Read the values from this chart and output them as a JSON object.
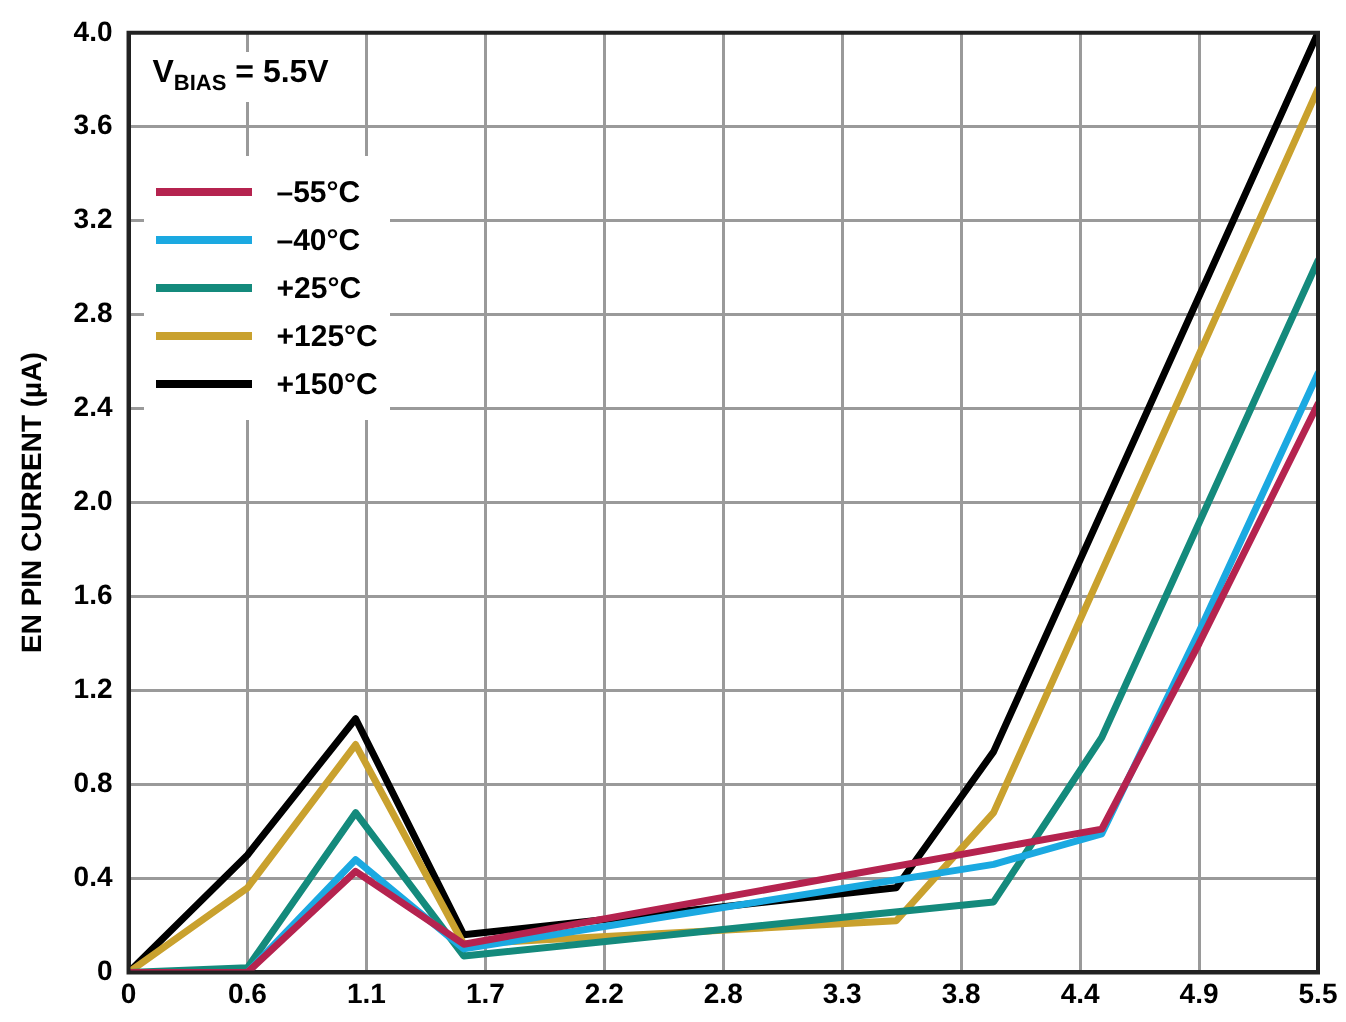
{
  "chart_data": {
    "type": "line",
    "ylabel": "EN PIN CURRENT (µA)",
    "annotations": [
      "V$_{BIAS}$ = 5.5V"
    ],
    "xlim": [
      0,
      5.5
    ],
    "xticks": [
      0,
      {
        "value": 0.55,
        "label": "0.6"
      },
      1.1,
      {
        "value": 1.65,
        "label": "1.7"
      },
      2.2,
      {
        "value": 2.75,
        "label": "2.8"
      },
      3.3,
      {
        "value": 3.85,
        "label": "3.8"
      },
      4.4,
      {
        "value": 4.95,
        "label": "4.9"
      },
      5.5
    ],
    "ylim": [
      0,
      4
    ],
    "yticks": [
      0,
      0.4,
      0.8,
      1.2,
      1.6,
      {
        "value": 2,
        "label": "2.0"
      },
      2.4,
      2.8,
      3.2,
      3.6,
      {
        "value": 4,
        "label": "4.0"
      }
    ],
    "grid": true,
    "legend": "top left",
    "marker": "none",
    "line_style": "solid",
    "series": [
      {
        "name": "–55°C",
        "color": "#b5234f",
        "x": [
          0,
          0.55,
          1.05,
          1.55,
          4.5,
          4.95,
          5.5
        ],
        "values": [
          0,
          0,
          0.43,
          0.12,
          0.61,
          1.4,
          2.42
        ]
      },
      {
        "name": "–40°C",
        "color": "#1ba9e1",
        "x": [
          0,
          0.55,
          1.05,
          1.55,
          4.0,
          4.5,
          4.95,
          5.5
        ],
        "values": [
          0,
          0,
          0.48,
          0.1,
          0.46,
          0.59,
          1.45,
          2.55
        ]
      },
      {
        "name": "+25°C",
        "color": "#148a7c",
        "x": [
          0,
          0.55,
          1.05,
          1.55,
          4.0,
          4.5,
          5.5
        ],
        "values": [
          0,
          0.02,
          0.68,
          0.07,
          0.3,
          1.0,
          3.03
        ]
      },
      {
        "name": "+125°C",
        "color": "#c9a12e",
        "x": [
          0,
          0.55,
          1.05,
          1.55,
          3.55,
          4.0,
          5.5
        ],
        "values": [
          0,
          0.36,
          0.97,
          0.12,
          0.22,
          0.68,
          3.76
        ]
      },
      {
        "name": "+150°C",
        "color": "#000000",
        "x": [
          0,
          0.55,
          1.05,
          1.55,
          3.55,
          4.0,
          5.5
        ],
        "values": [
          0,
          0.5,
          1.08,
          0.16,
          0.36,
          0.94,
          4.0
        ]
      }
    ]
  }
}
